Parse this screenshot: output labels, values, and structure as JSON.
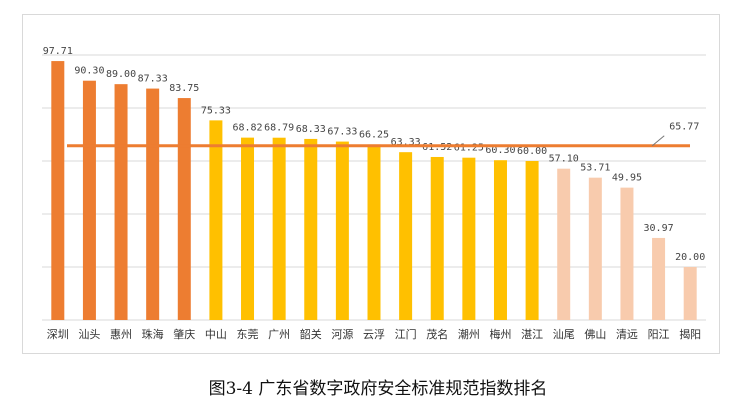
{
  "caption": "图3-4  广东省数字政府安全标准规范指数排名",
  "chart_data": {
    "type": "bar",
    "title": "",
    "xlabel": "",
    "ylabel": "",
    "ylim": [
      0,
      100
    ],
    "grid": true,
    "categories": [
      "深圳",
      "汕头",
      "惠州",
      "珠海",
      "肇庆",
      "中山",
      "东莞",
      "广州",
      "韶关",
      "河源",
      "云浮",
      "江门",
      "茂名",
      "潮州",
      "梅州",
      "湛江",
      "汕尾",
      "佛山",
      "清远",
      "阳江",
      "揭阳"
    ],
    "values": [
      97.71,
      90.3,
      89.0,
      87.33,
      83.75,
      75.33,
      68.82,
      68.79,
      68.33,
      67.33,
      66.25,
      63.33,
      61.52,
      61.25,
      60.3,
      60.0,
      57.1,
      53.71,
      49.95,
      30.97,
      20.0
    ],
    "value_labels": [
      "97.71",
      "90.30",
      "89.00",
      "87.33",
      "83.75",
      "75.33",
      "68.82",
      "68.79",
      "68.33",
      "67.33",
      "66.25",
      "63.33",
      "61.52",
      "61.25",
      "60.30",
      "60.00",
      "57.10",
      "53.71",
      "49.95",
      "30.97",
      "20.00"
    ],
    "average": 65.77,
    "average_label": "65.77",
    "colors": {
      "top_group": "#ED7D31",
      "mid_group": "#FFC000",
      "low_group": "#F8CBAD",
      "average_line": "#ED7D31",
      "grid": "#d9d9d9"
    },
    "groups": [
      0,
      0,
      0,
      0,
      0,
      1,
      1,
      1,
      1,
      1,
      1,
      1,
      1,
      1,
      1,
      1,
      2,
      2,
      2,
      2,
      2
    ]
  }
}
